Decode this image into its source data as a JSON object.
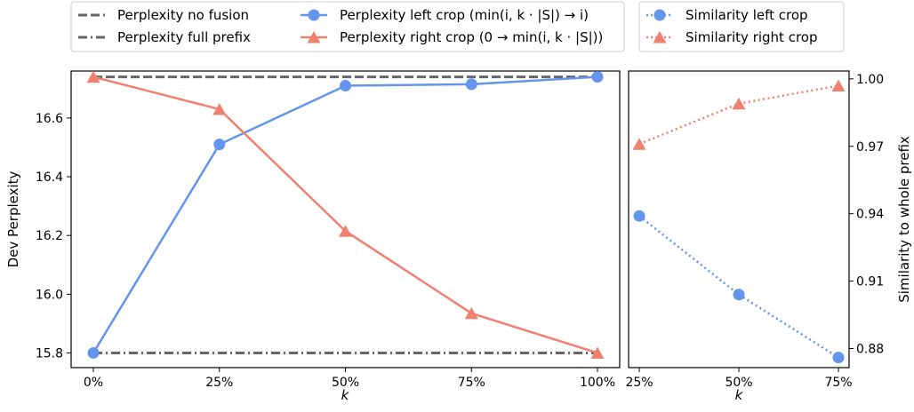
{
  "chart_data": [
    {
      "type": "line",
      "x": [
        "0%",
        "25%",
        "50%",
        "75%",
        "100%"
      ],
      "xlabel": "k",
      "ylabel": "Dev Perplexity",
      "ylim": [
        15.75,
        16.76
      ],
      "yticks": [
        15.8,
        16.0,
        16.2,
        16.4,
        16.6
      ],
      "ytick_labels": [
        "15.8",
        "16.0",
        "16.2",
        "16.4",
        "16.6"
      ],
      "grid": false,
      "series": [
        {
          "name": "Perplexity no fusion",
          "color": "#666666",
          "style": "dashed",
          "values": [
            16.74,
            16.74,
            16.74,
            16.74,
            16.74
          ]
        },
        {
          "name": "Perplexity full prefix",
          "color": "#666666",
          "style": "dashdot",
          "values": [
            15.8,
            15.8,
            15.8,
            15.8,
            15.8
          ]
        },
        {
          "name": "Perplexity left crop (min(i, k · |S|) → i)",
          "color": "#6495ED",
          "marker": "circle",
          "values": [
            15.8,
            16.51,
            16.71,
            16.715,
            16.74
          ]
        },
        {
          "name": "Perplexity right crop (0 → min(i, k · |S|))",
          "color": "#F08070",
          "marker": "triangle",
          "values": [
            16.74,
            16.63,
            16.215,
            15.935,
            15.8
          ]
        }
      ]
    },
    {
      "type": "line",
      "x": [
        "25%",
        "50%",
        "75%"
      ],
      "xlabel": "k",
      "ylabel": "Similarity to whole prefix",
      "ylim": [
        0.8715,
        1.0035
      ],
      "yticks": [
        0.88,
        0.91,
        0.94,
        0.97,
        1.0
      ],
      "ytick_labels": [
        "0.88",
        "0.91",
        "0.94",
        "0.97",
        "1.00"
      ],
      "grid": false,
      "series": [
        {
          "name": "Similarity left crop",
          "color": "#6495ED",
          "marker": "circle",
          "style": "dotted",
          "values": [
            0.939,
            0.904,
            0.876
          ]
        },
        {
          "name": "Similarity right crop",
          "color": "#F08070",
          "marker": "triangle",
          "style": "dotted",
          "values": [
            0.971,
            0.989,
            0.997
          ]
        }
      ]
    }
  ],
  "legend": {
    "box1": [
      "Perplexity no fusion",
      "Perplexity full prefix",
      "Perplexity left crop (min(i, k · |S|) → i)",
      "Perplexity right crop (0 → min(i, k · |S|))"
    ],
    "box2": [
      "Similarity left crop",
      "Similarity right crop"
    ]
  }
}
